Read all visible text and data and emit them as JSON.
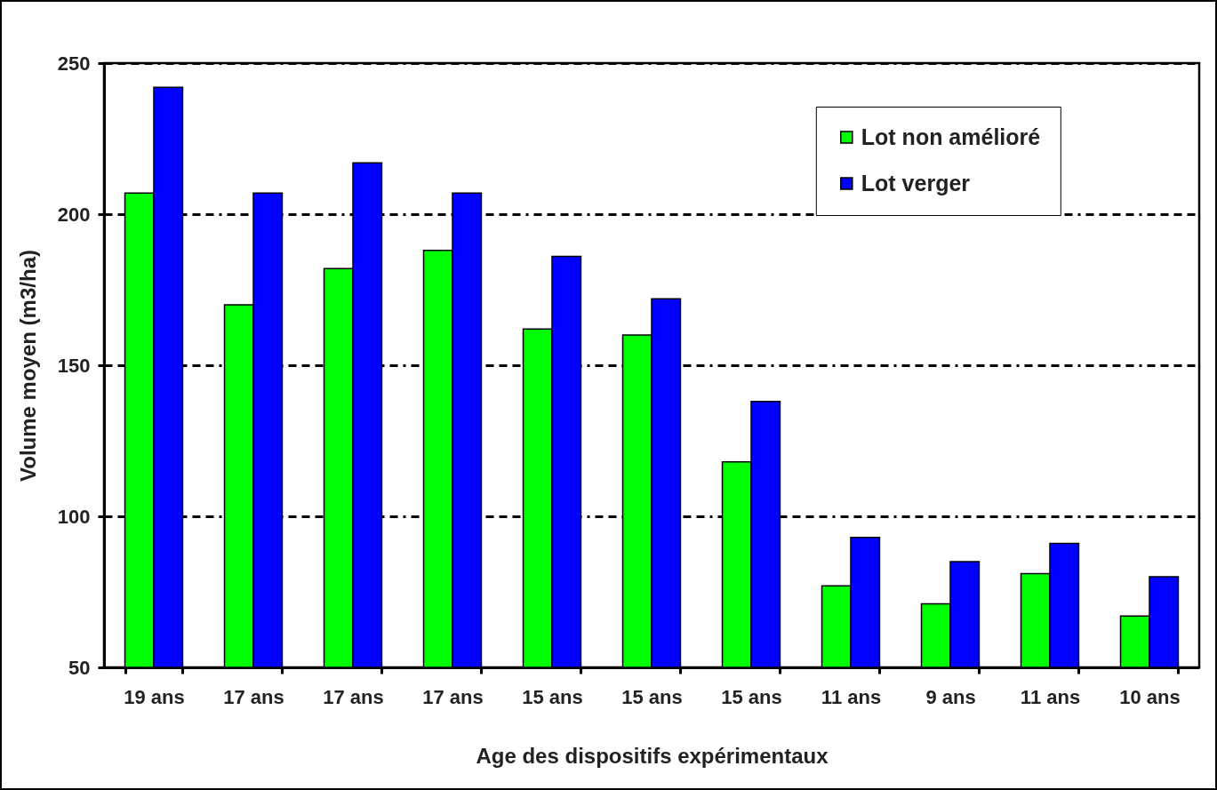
{
  "chart_data": {
    "type": "bar",
    "xlabel": "Age des dispositifs expérimentaux",
    "ylabel": "Volume moyen (m3/ha)",
    "categories": [
      "19 ans",
      "17 ans",
      "17 ans",
      "17 ans",
      "15 ans",
      "15 ans",
      "15 ans",
      "11 ans",
      "9 ans",
      "11 ans",
      "10 ans"
    ],
    "series": [
      {
        "name": "Lot non amélioré",
        "color": "#00ff00",
        "values": [
          207,
          170,
          182,
          188,
          162,
          160,
          118,
          77,
          71,
          81,
          67
        ]
      },
      {
        "name": "Lot verger",
        "color": "#0000ff",
        "values": [
          242,
          207,
          217,
          207,
          186,
          172,
          138,
          93,
          85,
          91,
          80
        ]
      }
    ],
    "ylim": [
      50,
      250
    ],
    "yticks": [
      50,
      100,
      150,
      200,
      250
    ],
    "grid": "y",
    "legend": "top right"
  }
}
